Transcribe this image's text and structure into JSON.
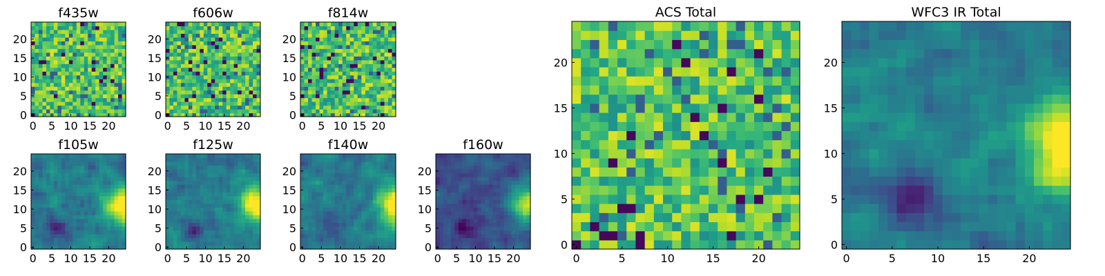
{
  "figure": {
    "description_free": true
  },
  "chart_data": [
    {
      "id": "f435w",
      "type": "heatmap",
      "title": "f435w",
      "grid": false,
      "colormap": "viridis",
      "size": [
        25,
        25
      ],
      "xticks": [
        "0",
        "5",
        "10",
        "15",
        "20"
      ],
      "yticks": [
        "0",
        "5",
        "10",
        "15",
        "20"
      ],
      "texture": "noisy-high",
      "seed": 11
    },
    {
      "id": "f606w",
      "type": "heatmap",
      "title": "f606w",
      "grid": false,
      "colormap": "viridis",
      "size": [
        25,
        25
      ],
      "xticks": [
        "0",
        "5",
        "10",
        "15",
        "20"
      ],
      "yticks": [
        "0",
        "5",
        "10",
        "15",
        "20"
      ],
      "texture": "noisy-high",
      "seed": 23
    },
    {
      "id": "f814w",
      "type": "heatmap",
      "title": "f814w",
      "grid": false,
      "colormap": "viridis",
      "size": [
        25,
        25
      ],
      "xticks": [
        "0",
        "5",
        "10",
        "15",
        "20"
      ],
      "yticks": [
        "0",
        "5",
        "10",
        "15",
        "20"
      ],
      "texture": "noisy-high",
      "seed": 37
    },
    {
      "id": "f105w",
      "type": "heatmap",
      "title": "f105w",
      "grid": false,
      "colormap": "viridis",
      "size": [
        25,
        25
      ],
      "xticks": [
        "0",
        "5",
        "10",
        "15",
        "20"
      ],
      "yticks": [
        "0",
        "5",
        "10",
        "15",
        "20"
      ],
      "texture": "smooth-bright-right",
      "seed": 41
    },
    {
      "id": "f125w",
      "type": "heatmap",
      "title": "f125w",
      "grid": false,
      "colormap": "viridis",
      "size": [
        25,
        25
      ],
      "xticks": [
        "0",
        "5",
        "10",
        "15",
        "20"
      ],
      "yticks": [
        "0",
        "5",
        "10",
        "15",
        "20"
      ],
      "texture": "smooth-bright-right",
      "seed": 53
    },
    {
      "id": "f140w",
      "type": "heatmap",
      "title": "f140w",
      "grid": false,
      "colormap": "viridis",
      "size": [
        25,
        25
      ],
      "xticks": [
        "0",
        "5",
        "10",
        "15",
        "20"
      ],
      "yticks": [
        "0",
        "5",
        "10",
        "15",
        "20"
      ],
      "texture": "smooth-bright-right",
      "seed": 67
    },
    {
      "id": "f160w",
      "type": "heatmap",
      "title": "f160w",
      "grid": false,
      "colormap": "viridis",
      "size": [
        25,
        25
      ],
      "xticks": [
        "0",
        "5",
        "10",
        "15",
        "20"
      ],
      "yticks": [
        "0",
        "5",
        "10",
        "15",
        "20"
      ],
      "texture": "smooth-dark",
      "seed": 79
    },
    {
      "id": "acs_total",
      "type": "heatmap",
      "title": "ACS Total",
      "grid": false,
      "colormap": "viridis",
      "size": [
        25,
        25
      ],
      "xticks": [
        "0",
        "5",
        "10",
        "15",
        "20"
      ],
      "yticks": [
        "0",
        "5",
        "10",
        "15",
        "20"
      ],
      "texture": "noisy-high",
      "seed": 97
    },
    {
      "id": "wfc3_ir_total",
      "type": "heatmap",
      "title": "WFC3 IR Total",
      "grid": false,
      "colormap": "viridis",
      "size": [
        25,
        25
      ],
      "xticks": [
        "0",
        "5",
        "10",
        "15",
        "20"
      ],
      "yticks": [
        "0",
        "5",
        "10",
        "15",
        "20"
      ],
      "texture": "smooth-bright-right",
      "seed": 113
    }
  ]
}
